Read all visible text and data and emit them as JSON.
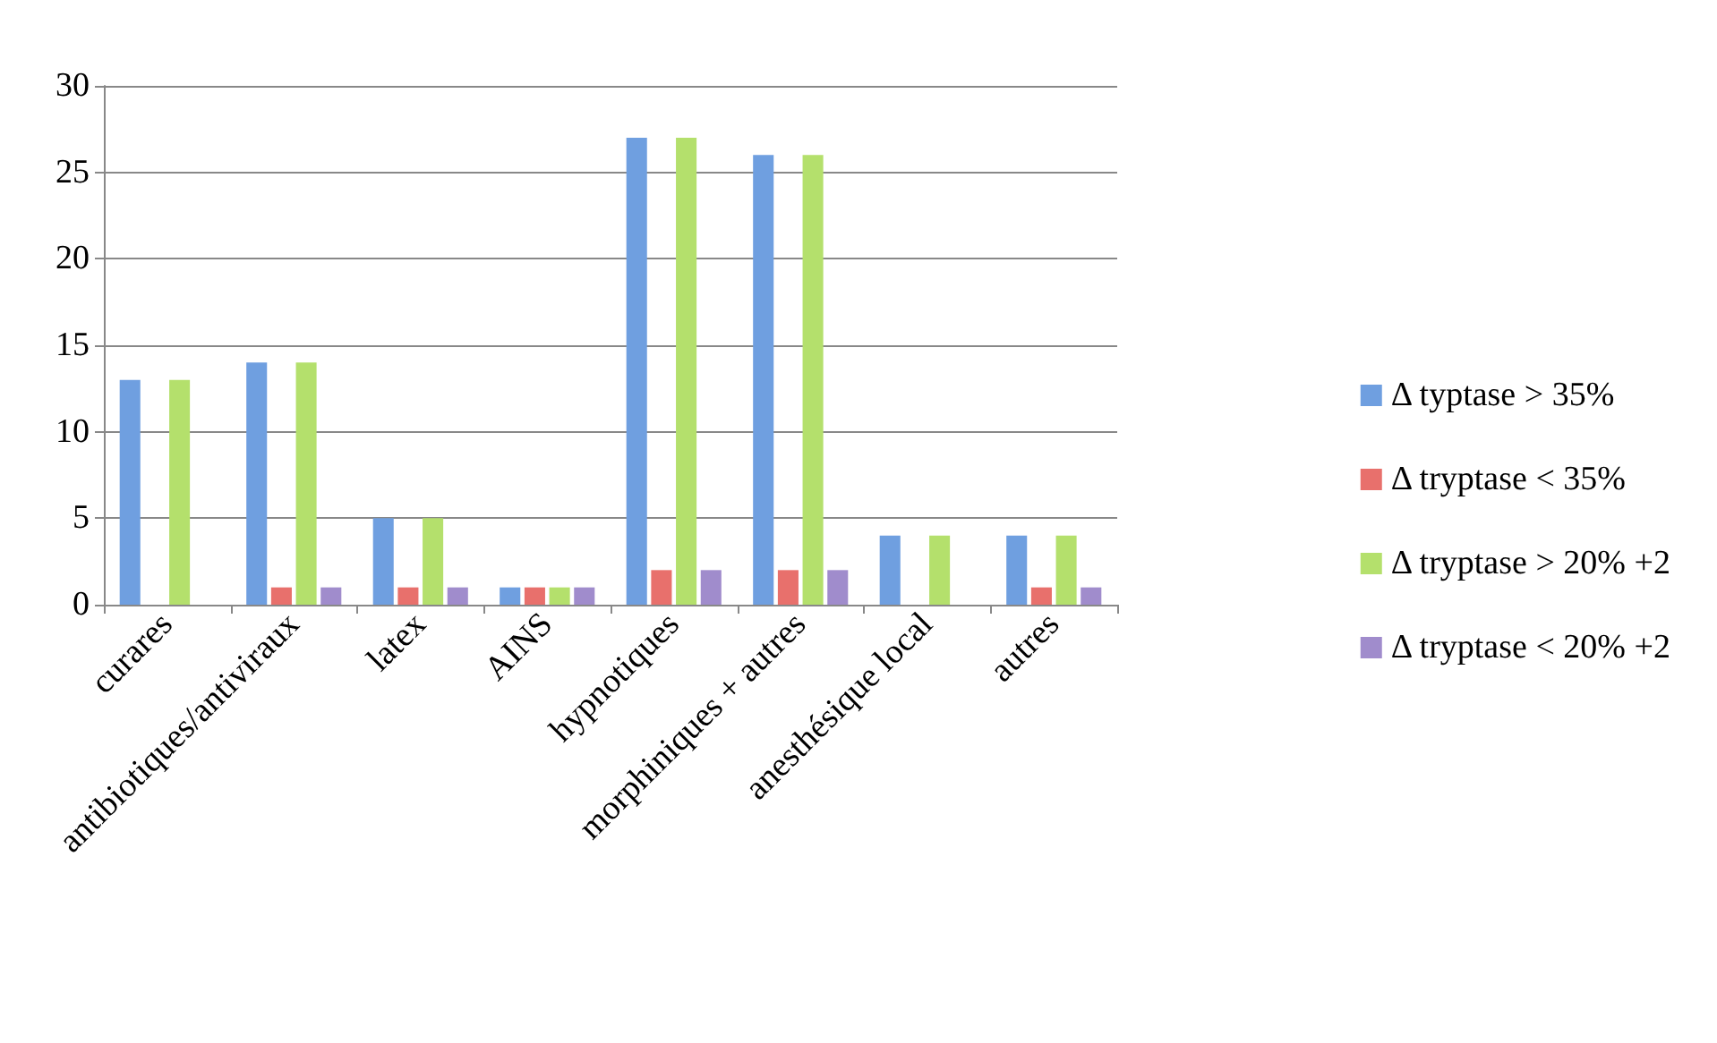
{
  "chart_data": {
    "type": "bar",
    "categories": [
      "curares",
      "antibiotiques/antiviraux",
      "latex",
      "AINS",
      "hypnotiques",
      "morphiniques + autres",
      "anesthésique local",
      "autres"
    ],
    "series": [
      {
        "name": "Δ typtase > 35%",
        "color": "#6f9fe0",
        "values": [
          13,
          14,
          5,
          1,
          27,
          26,
          4,
          4
        ]
      },
      {
        "name": "Δ tryptase < 35%",
        "color": "#e8706c",
        "values": [
          0,
          1,
          1,
          1,
          2,
          2,
          0,
          1
        ]
      },
      {
        "name": "Δ tryptase > 20% +2",
        "color": "#b4e06c",
        "values": [
          13,
          14,
          5,
          1,
          27,
          26,
          4,
          4
        ]
      },
      {
        "name": "Δ tryptase < 20% +2",
        "color": "#a08ccc",
        "values": [
          0,
          1,
          1,
          1,
          2,
          2,
          0,
          1
        ]
      }
    ],
    "ylim": [
      0,
      30
    ],
    "yticks": [
      0,
      5,
      10,
      15,
      20,
      25,
      30
    ],
    "grid": "y",
    "legend": "right"
  }
}
